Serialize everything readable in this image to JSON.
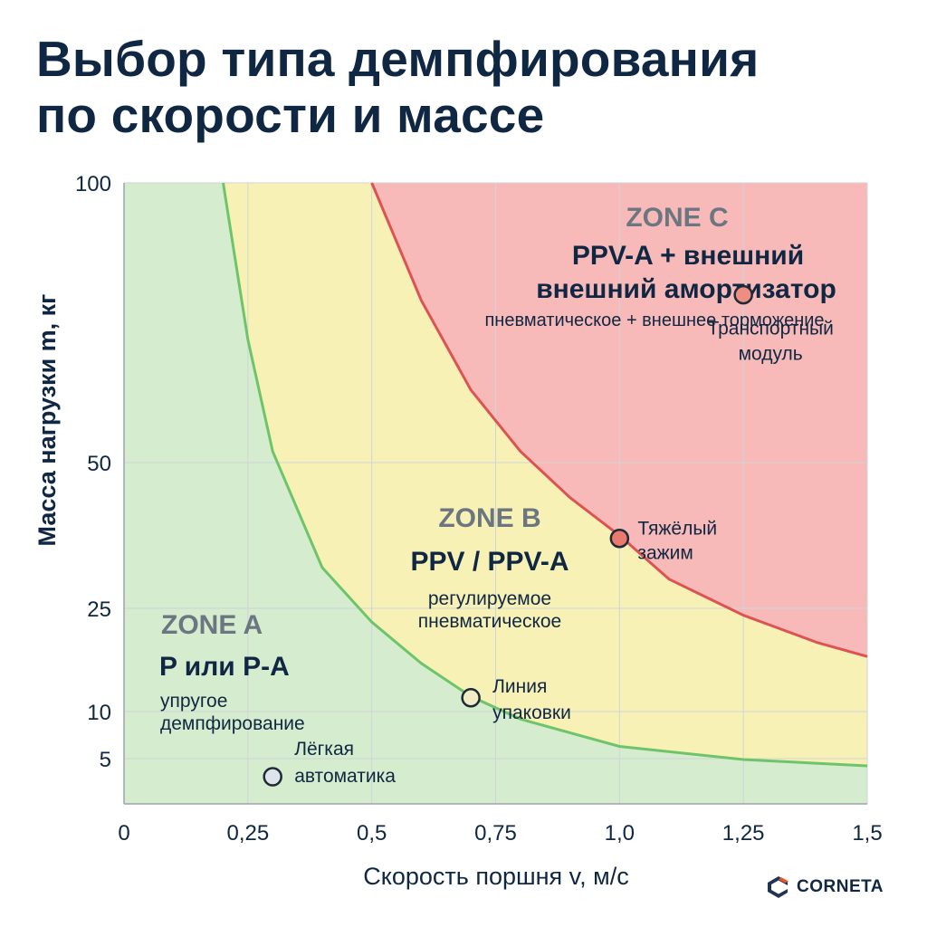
{
  "title_line1": "Выбор типа демпфирования",
  "title_line2": "по скорости и массе",
  "brand_name": "CORNETA",
  "colors": {
    "zone_a": "#d5ecce",
    "zone_b": "#f8f1b6",
    "zone_c": "#f7bab8",
    "boundary_ab": "#6ec46a",
    "boundary_bc": "#dd5353",
    "grid": "#cfd4da",
    "text": "#0f2742"
  },
  "chart_data": {
    "type": "area",
    "xlabel": "Скорость поршня v, м/с",
    "ylabel": "Масса нагрузки m, кг",
    "xlim": [
      0,
      1.5
    ],
    "ylim": [
      0,
      100
    ],
    "x_ticks": [
      {
        "value": 0,
        "label": "0"
      },
      {
        "value": 0.25,
        "label": "0,25"
      },
      {
        "value": 0.5,
        "label": "0,5"
      },
      {
        "value": 0.75,
        "label": "0,75"
      },
      {
        "value": 1.0,
        "label": "1,0"
      },
      {
        "value": 1.25,
        "label": "1,25"
      },
      {
        "value": 1.5,
        "label": "1,5"
      }
    ],
    "y_ticks": [
      {
        "value": 5,
        "label": "5"
      },
      {
        "value": 10,
        "label": "10"
      },
      {
        "value": 25,
        "label": "25"
      },
      {
        "value": 50,
        "label": "50"
      },
      {
        "value": 100,
        "label": "100"
      }
    ],
    "y_axis_note": "non-linear axis: tick labels 5, 10, 25, 50, 100 are unevenly spaced",
    "grid": true,
    "boundaries": [
      {
        "id": "a_b",
        "x": [
          0.2,
          0.25,
          0.3,
          0.4,
          0.5,
          0.6,
          0.7,
          0.8,
          1.0,
          1.25,
          1.5
        ],
        "y": [
          100,
          72,
          52,
          32,
          23,
          17,
          12.2,
          9.2,
          6.3,
          4.9,
          4.2
        ]
      },
      {
        "id": "b_c",
        "x": [
          0.5,
          0.6,
          0.7,
          0.8,
          0.9,
          1.0,
          1.1,
          1.25,
          1.4,
          1.5
        ],
        "y": [
          100,
          79,
          63,
          52,
          44,
          37.5,
          30,
          24,
          20,
          18
        ]
      }
    ],
    "zones": [
      {
        "zone": "ZONE A",
        "type_label": "P или P-A",
        "desc_line1": "упругое",
        "desc_line2": "демпфирование"
      },
      {
        "zone": "ZONE B",
        "type_label": "PPV / PPV-A",
        "desc_line1": "регулируемое",
        "desc_line2": "пневматическое"
      },
      {
        "zone": "ZONE C",
        "type_label": "PPV-A + внешний",
        "type_label_2": "внешний амортизатор",
        "desc_line1": "пневматическое + внешнее торможение"
      }
    ],
    "points": [
      {
        "x": 0.3,
        "y": 3,
        "label1": "Лёгкая",
        "label2": "автоматика",
        "color": "#dde4ea"
      },
      {
        "x": 0.7,
        "y": 12,
        "label1": "Линия",
        "label2": "упаковки",
        "color": "#f1ecc4"
      },
      {
        "x": 1.0,
        "y": 37,
        "label1": "Тяжёлый",
        "label2": "зажим",
        "color": "#ea7a70"
      },
      {
        "x": 1.25,
        "y": 80,
        "label1": "Транспортный",
        "label2": "модуль",
        "color": "#ee8d82"
      }
    ]
  }
}
